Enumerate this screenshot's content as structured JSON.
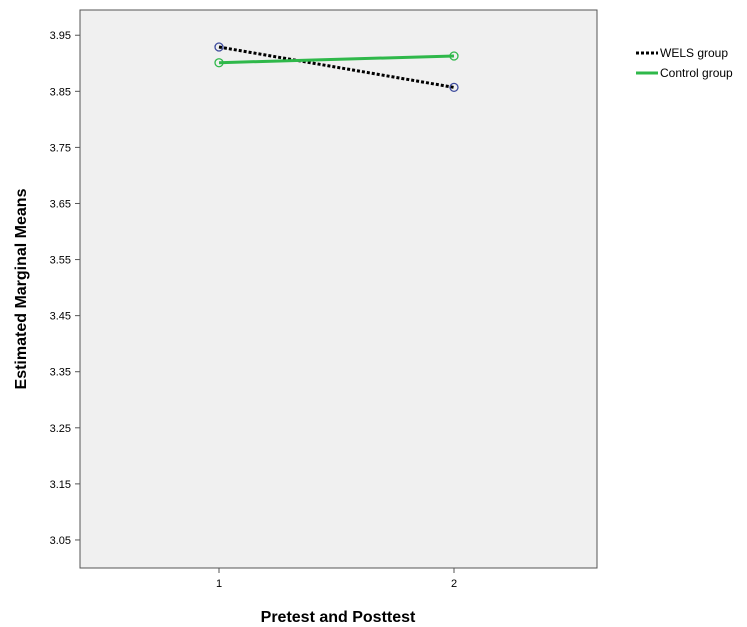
{
  "chart_data": {
    "type": "line",
    "title": "",
    "xlabel": "Pretest and Posttest",
    "ylabel": "Estimated Marginal Means",
    "categories": [
      "1",
      "2"
    ],
    "ylim": [
      3.0,
      3.995
    ],
    "yticks": [
      "3.05",
      "3.15",
      "3.25",
      "3.35",
      "3.45",
      "3.55",
      "3.65",
      "3.75",
      "3.85",
      "3.95"
    ],
    "grid": false,
    "legend_position": "top-right, outside plot",
    "plot_background": "#f0f0f0",
    "series": [
      {
        "name": "WELS group",
        "values": [
          3.929,
          3.857
        ],
        "color": "#000000",
        "marker_color": "#3c4a9c",
        "line_style": "dotted"
      },
      {
        "name": "Control group",
        "values": [
          3.901,
          3.913
        ],
        "color": "#2fb84a",
        "marker_color": "#2fb84a",
        "line_style": "solid"
      }
    ]
  }
}
